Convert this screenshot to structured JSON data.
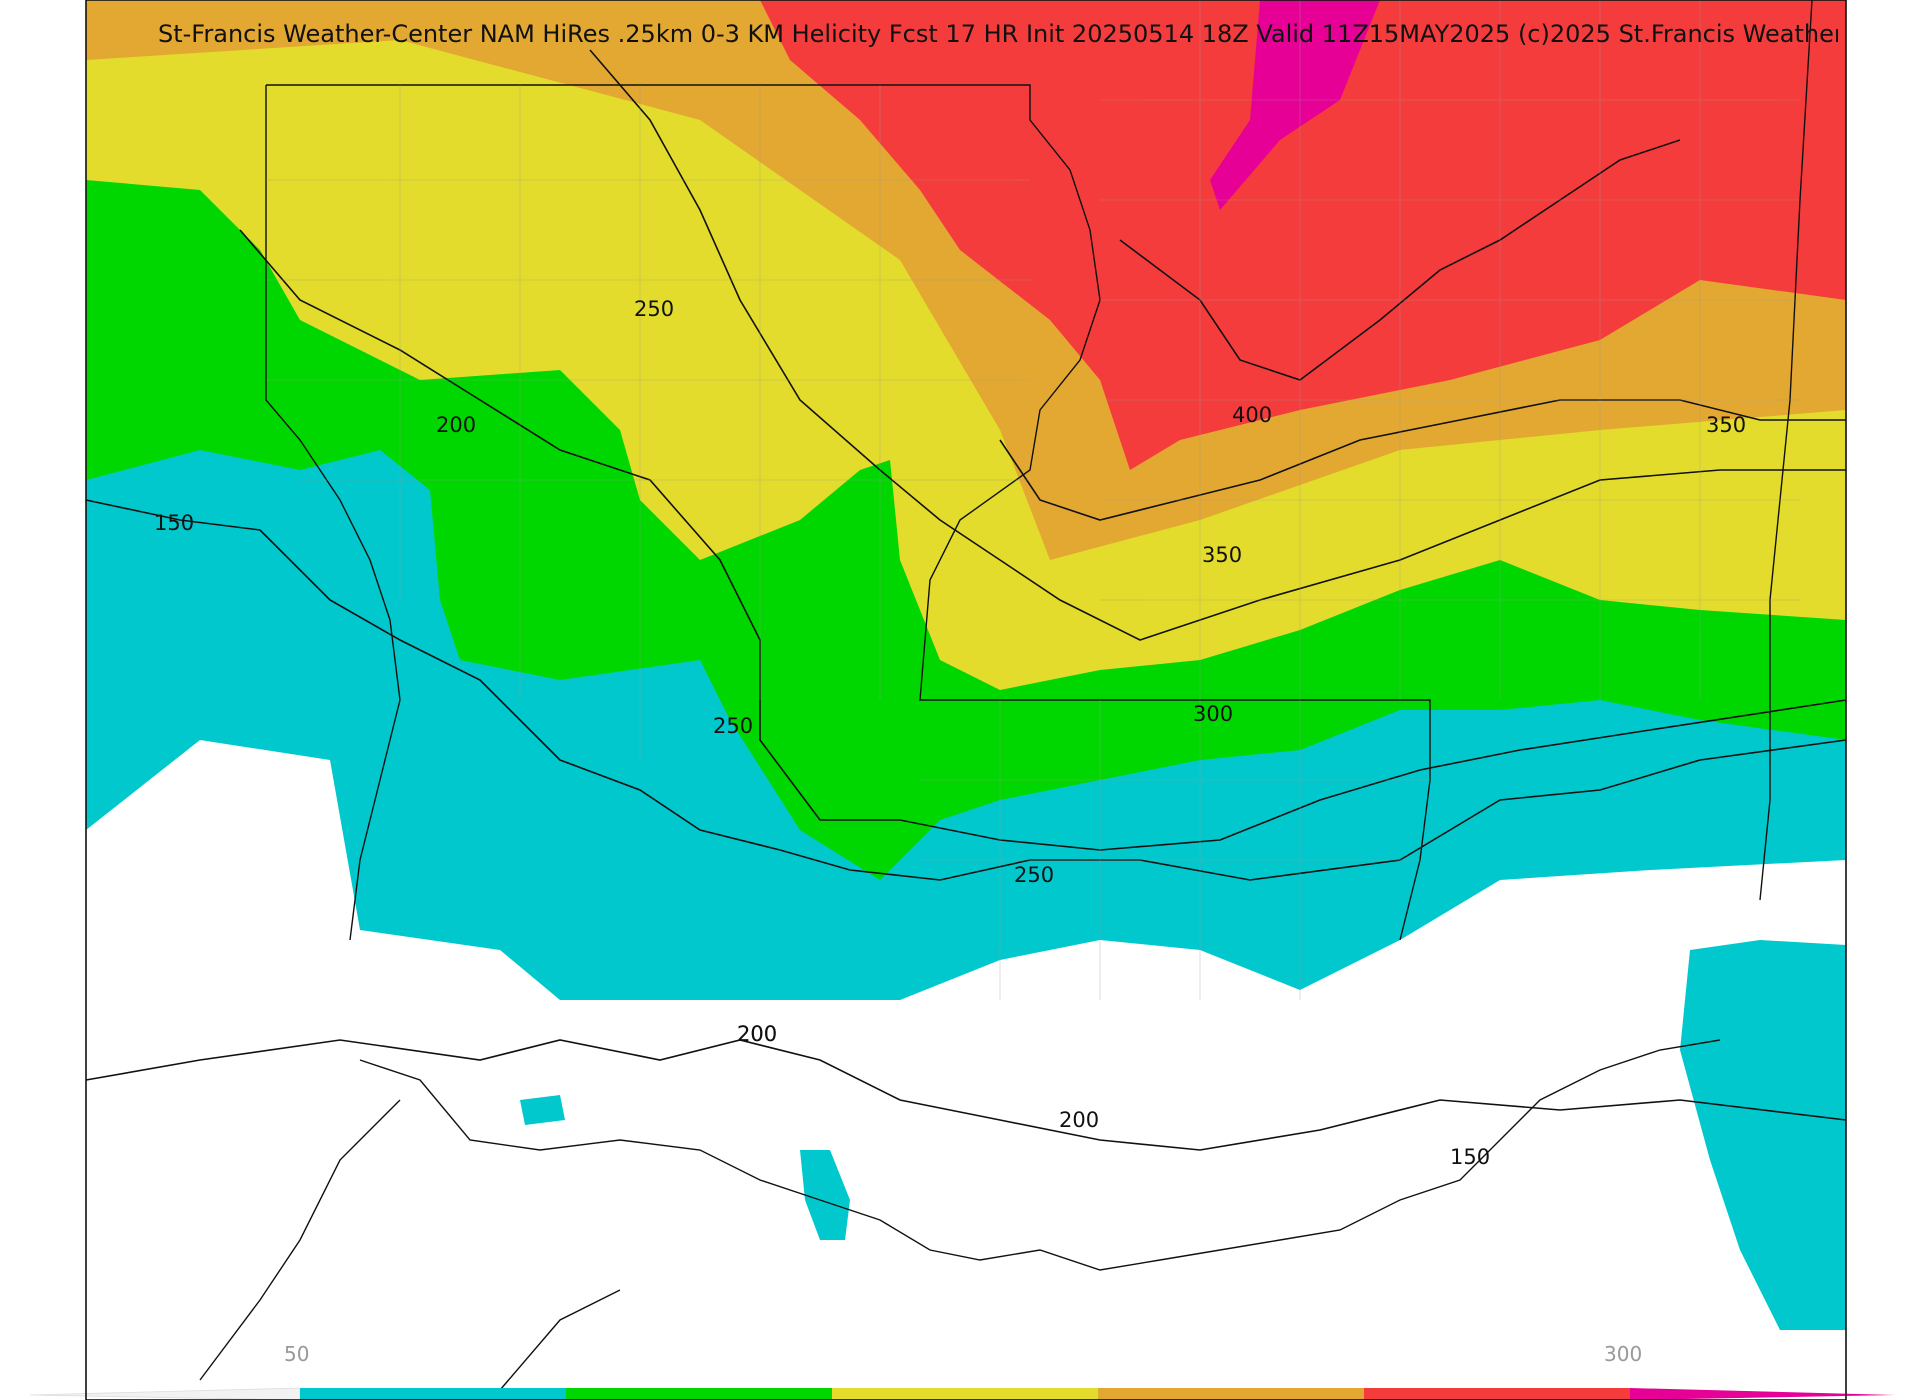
{
  "title": "St-Francis Weather-Center NAM HiRes .25km 0-3 KM Helicity Fcst 17 HR Init 20250514 18Z  Valid 11Z15MAY2025   (c)2025 St.Francis Weather",
  "colorbar": {
    "colors": [
      "#00c8cd",
      "#00d700",
      "#e3dc2c",
      "#e3a832",
      "#f53c3c",
      "#e60096"
    ],
    "tick_labels": [
      "50",
      "300"
    ]
  },
  "contour_labels": [
    "150",
    "200",
    "250",
    "200",
    "250",
    "300",
    "250",
    "200",
    "200",
    "150",
    "350",
    "400",
    "350"
  ]
}
